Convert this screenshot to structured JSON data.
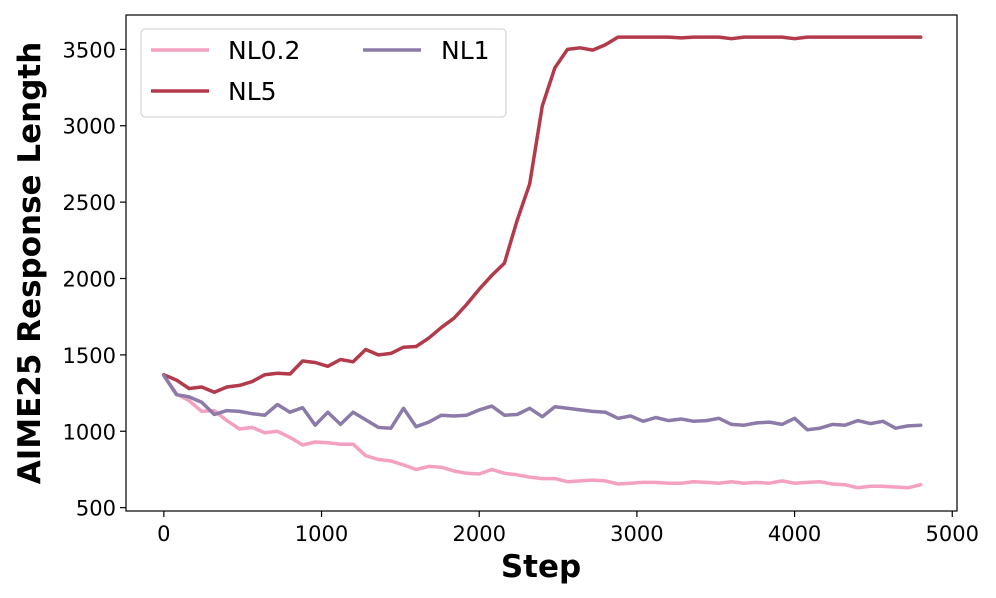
{
  "chart_data": {
    "type": "line",
    "xlabel": "Step",
    "ylabel": "AIME25 Response Length",
    "xlim": [
      -240,
      5030
    ],
    "ylim": [
      478,
      3725
    ],
    "xticks": [
      0,
      1000,
      2000,
      3000,
      4000,
      5000
    ],
    "yticks": [
      500,
      1000,
      1500,
      2000,
      2500,
      3000,
      3500
    ],
    "grid": false,
    "legend": {
      "placement": "top-left",
      "columns": 2
    },
    "x": [
      0,
      80,
      160,
      240,
      320,
      400,
      480,
      560,
      640,
      720,
      800,
      880,
      960,
      1040,
      1120,
      1200,
      1280,
      1360,
      1440,
      1520,
      1600,
      1680,
      1760,
      1840,
      1920,
      2000,
      2080,
      2160,
      2240,
      2320,
      2400,
      2480,
      2560,
      2640,
      2720,
      2800,
      2880,
      2960,
      3040,
      3120,
      3200,
      3280,
      3360,
      3440,
      3520,
      3600,
      3680,
      3760,
      3840,
      3920,
      4000,
      4080,
      4160,
      4240,
      4320,
      4400,
      4480,
      4560,
      4640,
      4720,
      4800
    ],
    "series": [
      {
        "name": "NL0.2",
        "color": "#f4a0c0",
        "values": [
          1365,
          1245,
          1200,
          1130,
          1135,
          1070,
          1015,
          1025,
          990,
          1000,
          960,
          910,
          930,
          925,
          915,
          915,
          840,
          815,
          805,
          780,
          750,
          770,
          765,
          740,
          725,
          720,
          750,
          725,
          715,
          700,
          690,
          690,
          670,
          675,
          680,
          675,
          655,
          660,
          665,
          665,
          660,
          660,
          670,
          665,
          660,
          670,
          660,
          665,
          660,
          675,
          660,
          665,
          670,
          655,
          650,
          630,
          640,
          640,
          635,
          630,
          650
        ]
      },
      {
        "name": "NL5",
        "color": "#b33a4a",
        "values": [
          1370,
          1335,
          1280,
          1290,
          1255,
          1290,
          1300,
          1325,
          1370,
          1380,
          1375,
          1460,
          1450,
          1425,
          1470,
          1455,
          1535,
          1500,
          1510,
          1550,
          1555,
          1610,
          1680,
          1740,
          1830,
          1930,
          2020,
          2100,
          2380,
          2620,
          3130,
          3380,
          3500,
          3510,
          3495,
          3530,
          3580,
          3580,
          3580,
          3580,
          3580,
          3575,
          3580,
          3580,
          3580,
          3570,
          3580,
          3580,
          3580,
          3580,
          3570,
          3580,
          3580,
          3580,
          3580,
          3580,
          3580,
          3580,
          3580,
          3580,
          3580
        ]
      },
      {
        "name": "NL1",
        "color": "#8c7ba8",
        "values": [
          1365,
          1240,
          1225,
          1190,
          1110,
          1135,
          1130,
          1115,
          1105,
          1175,
          1125,
          1155,
          1040,
          1125,
          1045,
          1125,
          1075,
          1025,
          1020,
          1150,
          1030,
          1060,
          1105,
          1100,
          1105,
          1140,
          1165,
          1105,
          1110,
          1150,
          1095,
          1160,
          1150,
          1140,
          1130,
          1125,
          1085,
          1100,
          1065,
          1090,
          1070,
          1080,
          1065,
          1070,
          1085,
          1045,
          1040,
          1055,
          1060,
          1045,
          1085,
          1010,
          1020,
          1045,
          1040,
          1070,
          1050,
          1065,
          1020,
          1035,
          1040
        ]
      }
    ]
  }
}
